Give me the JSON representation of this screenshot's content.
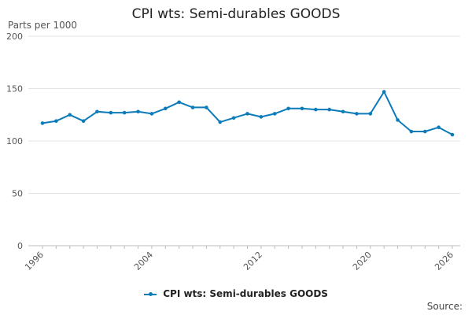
{
  "chart_data": {
    "type": "line",
    "title": "CPI wts: Semi-durables GOODS",
    "ylabel": "Parts per 1000",
    "xlabel": "",
    "source_label": "Source:",
    "ylim": [
      0,
      200
    ],
    "yticks": [
      0,
      50,
      100,
      150,
      200
    ],
    "xlim": [
      1996,
      2026
    ],
    "xticks": [
      1996,
      2004,
      2012,
      2020,
      2026
    ],
    "grid": true,
    "legend": "bottom",
    "series": [
      {
        "name": "CPI wts: Semi-durables GOODS",
        "color": "#0b7bba",
        "x": [
          1996,
          1997,
          1998,
          1999,
          2000,
          2001,
          2002,
          2003,
          2004,
          2005,
          2006,
          2007,
          2008,
          2009,
          2010,
          2011,
          2012,
          2013,
          2014,
          2015,
          2016,
          2017,
          2018,
          2019,
          2020,
          2021,
          2022,
          2023,
          2024,
          2025,
          2026
        ],
        "y": [
          117,
          119,
          125,
          119,
          128,
          127,
          127,
          128,
          126,
          131,
          137,
          132,
          132,
          118,
          122,
          126,
          123,
          126,
          131,
          131,
          130,
          130,
          128,
          126,
          126,
          147,
          120,
          109,
          109,
          113,
          106
        ]
      }
    ]
  }
}
